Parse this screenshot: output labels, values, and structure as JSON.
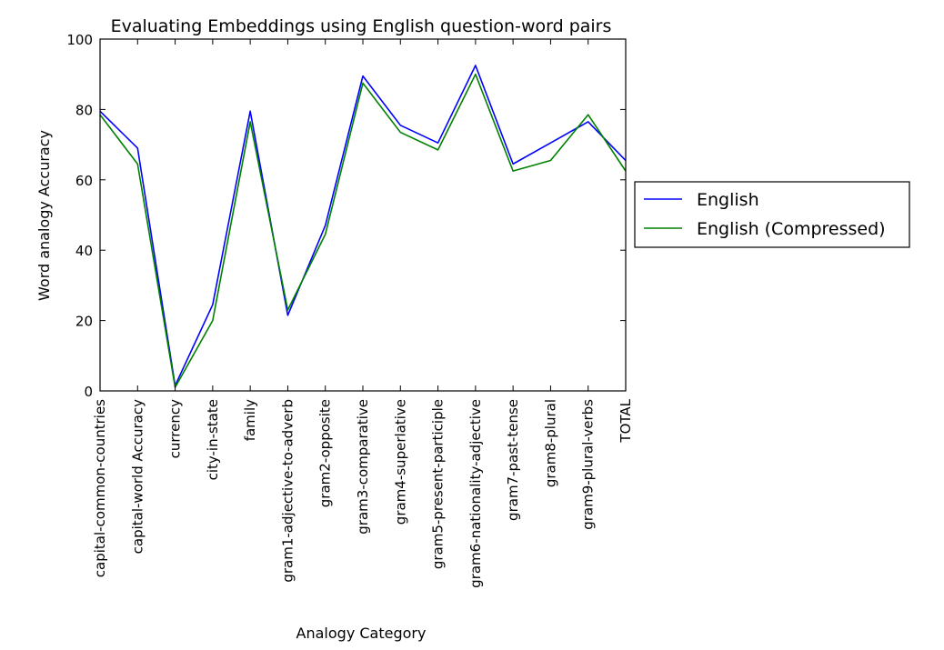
{
  "chart_data": {
    "type": "line",
    "title": "Evaluating Embeddings using English question-word pairs",
    "xlabel": "Analogy Category",
    "ylabel": "Word analogy Accuracy",
    "ylim": [
      0,
      100
    ],
    "yticks": [
      0,
      20,
      40,
      60,
      80,
      100
    ],
    "grid": false,
    "legend_position": "outside-right",
    "categories": [
      "capital-common-countries",
      "capital-world Accuracy",
      "currency",
      "city-in-state",
      "family",
      "gram1-adjective-to-adverb",
      "gram2-opposite",
      "gram3-comparative",
      "gram4-superlative",
      "gram5-present-participle",
      "gram6-nationality-adjective",
      "gram7-past-tense",
      "gram8-plural",
      "gram9-plural-verbs",
      "TOTAL"
    ],
    "series": [
      {
        "name": "English",
        "color": "#0000ff",
        "values": [
          79.5,
          69.0,
          1.5,
          24.5,
          79.5,
          21.5,
          47.0,
          89.5,
          75.5,
          70.5,
          92.5,
          64.5,
          70.5,
          76.5,
          65.5
        ]
      },
      {
        "name": "English (Compressed)",
        "color": "#008000",
        "values": [
          78.5,
          64.5,
          1.0,
          20.0,
          76.5,
          23.0,
          44.5,
          87.5,
          73.5,
          68.5,
          90.0,
          62.5,
          65.5,
          78.5,
          62.5
        ]
      }
    ]
  }
}
